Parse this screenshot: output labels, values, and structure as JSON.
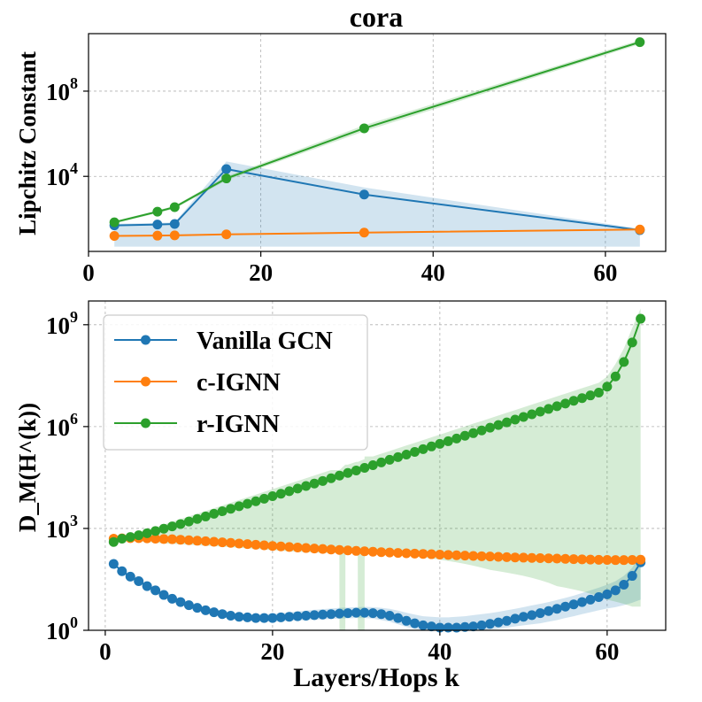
{
  "chart_data": [
    {
      "type": "line",
      "title": "cora",
      "xlabel": "",
      "ylabel": "Lipchitz Constant",
      "yscale": "log",
      "xlim": [
        0,
        67
      ],
      "ylim": [
        3,
        50000000000.0
      ],
      "grid": true,
      "x_ticks": [
        0,
        20,
        40,
        60
      ],
      "x_tick_labels": [
        "0",
        "20",
        "40",
        "60"
      ],
      "y_ticks": [
        10000,
        100000000
      ],
      "y_tick_labels": [
        {
          "base": "10",
          "exp": "4"
        },
        {
          "base": "10",
          "exp": "8"
        }
      ],
      "series": [
        {
          "name": "Vanilla GCN",
          "color": "#1f77b4",
          "x": [
            3,
            8,
            10,
            16,
            32,
            64
          ],
          "values": [
            50,
            55,
            58,
            22000,
            1400,
            30
          ],
          "band_upper": [
            60,
            65,
            70,
            50000,
            3000,
            35
          ],
          "band_lower": [
            5,
            5,
            5,
            5,
            5,
            5
          ]
        },
        {
          "name": "c-IGNN",
          "color": "#ff7f0e",
          "x": [
            3,
            8,
            10,
            16,
            32,
            64
          ],
          "values": [
            16,
            16.5,
            17,
            19,
            23,
            32
          ]
        },
        {
          "name": "r-IGNN",
          "color": "#2ca02c",
          "x": [
            3,
            8,
            10,
            16,
            32,
            64
          ],
          "values": [
            70,
            220,
            360,
            8000,
            1800000,
            20000000000
          ],
          "band_upper": [
            80,
            250,
            420,
            10000,
            2500000,
            25000000000
          ],
          "band_lower": [
            60,
            190,
            300,
            6500,
            1300000,
            16000000000
          ]
        }
      ]
    },
    {
      "type": "line",
      "title": "",
      "xlabel": "Layers/Hops k",
      "ylabel": "D_M(H^(k))",
      "yscale": "log",
      "xlim": [
        -2,
        67
      ],
      "ylim": [
        1,
        5000000000.0
      ],
      "grid": true,
      "legend_position": "top-left",
      "x_ticks": [
        0,
        20,
        40,
        60
      ],
      "x_tick_labels": [
        "0",
        "20",
        "40",
        "60"
      ],
      "y_ticks": [
        1,
        1000,
        1000000,
        1000000000
      ],
      "y_tick_labels": [
        {
          "base": "10",
          "exp": "0"
        },
        {
          "base": "10",
          "exp": "3"
        },
        {
          "base": "10",
          "exp": "6"
        },
        {
          "base": "10",
          "exp": "9"
        }
      ],
      "series": [
        {
          "name": "Vanilla GCN",
          "color": "#1f77b4",
          "x_start": 1,
          "x_step": 1,
          "values": [
            90,
            55,
            38,
            28,
            20,
            15,
            11,
            8.5,
            6.8,
            5.5,
            4.6,
            3.9,
            3.4,
            3.0,
            2.7,
            2.5,
            2.4,
            2.3,
            2.3,
            2.3,
            2.4,
            2.5,
            2.6,
            2.7,
            2.8,
            2.9,
            3.0,
            3.1,
            3.2,
            3.3,
            3.3,
            3.2,
            3.0,
            2.7,
            2.3,
            1.9,
            1.6,
            1.4,
            1.3,
            1.2,
            1.2,
            1.2,
            1.25,
            1.3,
            1.4,
            1.55,
            1.7,
            1.9,
            2.2,
            2.5,
            2.8,
            3.2,
            3.7,
            4.3,
            5.0,
            5.8,
            6.8,
            8.0,
            9.5,
            11.5,
            15,
            22,
            40,
            100
          ],
          "band_upper": [
            95,
            60,
            42,
            31,
            22,
            17,
            12.5,
            9.5,
            7.5,
            6.2,
            5.2,
            4.5,
            4.0,
            3.6,
            3.3,
            3.1,
            3.0,
            3.0,
            3.0,
            3.1,
            3.2,
            3.4,
            3.6,
            3.8,
            4.0,
            4.2,
            4.4,
            4.6,
            4.7,
            4.8,
            4.9,
            4.8,
            4.6,
            4.3,
            3.8,
            3.3,
            2.9,
            2.6,
            2.5,
            2.4,
            2.4,
            2.5,
            2.6,
            2.8,
            3.0,
            3.2,
            3.5,
            3.9,
            4.3,
            4.8,
            5.4,
            6.0,
            6.8,
            7.8,
            9.0,
            10.5,
            12.5,
            15,
            18,
            22,
            28,
            40,
            70,
            160
          ],
          "band_lower": [
            85,
            50,
            34,
            25,
            18,
            13,
            9.5,
            7.5,
            6.0,
            4.9,
            4.0,
            3.4,
            2.9,
            2.5,
            2.2,
            2.0,
            1.9,
            1.8,
            1.8,
            1.8,
            1.8,
            1.9,
            1.95,
            2.0,
            2.05,
            2.1,
            2.15,
            2.2,
            2.25,
            2.3,
            2.3,
            2.2,
            2.0,
            1.8,
            1.5,
            1.25,
            1.1,
            1.02,
            1.0,
            1.0,
            1.0,
            1.0,
            1.0,
            1.0,
            1.0,
            1.05,
            1.1,
            1.2,
            1.3,
            1.4,
            1.5,
            1.6,
            1.8,
            2.0,
            2.3,
            2.6,
            3.0,
            3.4,
            3.9,
            4.4,
            4.8,
            5.5,
            6.5,
            8
          ]
        },
        {
          "name": "c-IGNN",
          "color": "#ff7f0e",
          "x_start": 1,
          "x_step": 1,
          "values": [
            500,
            510,
            520,
            520,
            510,
            500,
            490,
            480,
            465,
            450,
            435,
            420,
            405,
            390,
            375,
            360,
            345,
            330,
            318,
            305,
            295,
            285,
            275,
            265,
            256,
            248,
            240,
            232,
            225,
            218,
            212,
            206,
            200,
            195,
            190,
            186,
            182,
            178,
            174,
            170,
            166,
            162,
            158,
            155,
            152,
            149,
            146,
            143,
            140,
            138,
            135,
            133,
            131,
            129,
            127,
            125,
            123,
            121,
            119,
            118,
            117,
            117,
            118,
            120
          ]
        },
        {
          "name": "r-IGNN",
          "color": "#2ca02c",
          "x_start": 1,
          "x_step": 1,
          "values": [
            400,
            500,
            560,
            630,
            720,
            840,
            980,
            1150,
            1350,
            1600,
            1900,
            2250,
            2700,
            3200,
            3800,
            4500,
            5300,
            6300,
            7500,
            8900,
            10500,
            12500,
            15000,
            17800,
            21000,
            25000,
            30000,
            36000,
            43000,
            51000,
            61000,
            73000,
            88000,
            105000,
            126000,
            150000,
            180000,
            216000,
            260000,
            310000,
            370000,
            445000,
            535000,
            640000,
            770000,
            925000,
            1110000,
            1330000,
            1600000,
            1920000,
            2300000,
            2760000,
            3310000,
            3970000,
            4770000,
            5730000,
            6880000,
            8270000,
            10000000,
            15000000,
            30000000,
            80000000,
            300000000,
            1500000000
          ],
          "band_upper": [
            430,
            550,
            640,
            760,
            900,
            1080,
            1300,
            1560,
            1880,
            2260,
            2720,
            3270,
            3940,
            4740,
            5700,
            6860,
            8250,
            9930,
            11950,
            14400,
            17300,
            20800,
            25000,
            30100,
            36200,
            43600,
            52400,
            63100,
            75900,
            91300,
            110000,
            132000,
            159000,
            191000,
            230000,
            277000,
            333000,
            401000,
            482000,
            580000,
            698000,
            840000,
            1010000,
            1220000,
            1460000,
            1760000,
            2120000,
            2550000,
            3070000,
            3690000,
            4440000,
            5340000,
            6430000,
            7740000,
            9310000,
            11200000,
            13500000,
            16200000,
            19500000,
            30000000,
            70000000,
            200000000,
            800000000,
            3000000000
          ],
          "band_lower": [
            370,
            420,
            420,
            410,
            400,
            380,
            360,
            350,
            340,
            330,
            320,
            310,
            300,
            290,
            280,
            270,
            260,
            250,
            240,
            230,
            220,
            210,
            205,
            200,
            195,
            190,
            185,
            180,
            200,
            200,
            200,
            200,
            190,
            180,
            170,
            160,
            150,
            140,
            130,
            120,
            110,
            100,
            90,
            80,
            70,
            60,
            55,
            50,
            45,
            40,
            35,
            30,
            25,
            20,
            18,
            16,
            14,
            12,
            10,
            8,
            7,
            6,
            5,
            5
          ],
          "band_dropouts": [
            [
              28,
              28.7
            ],
            [
              30.2,
              31
            ]
          ]
        }
      ]
    }
  ]
}
